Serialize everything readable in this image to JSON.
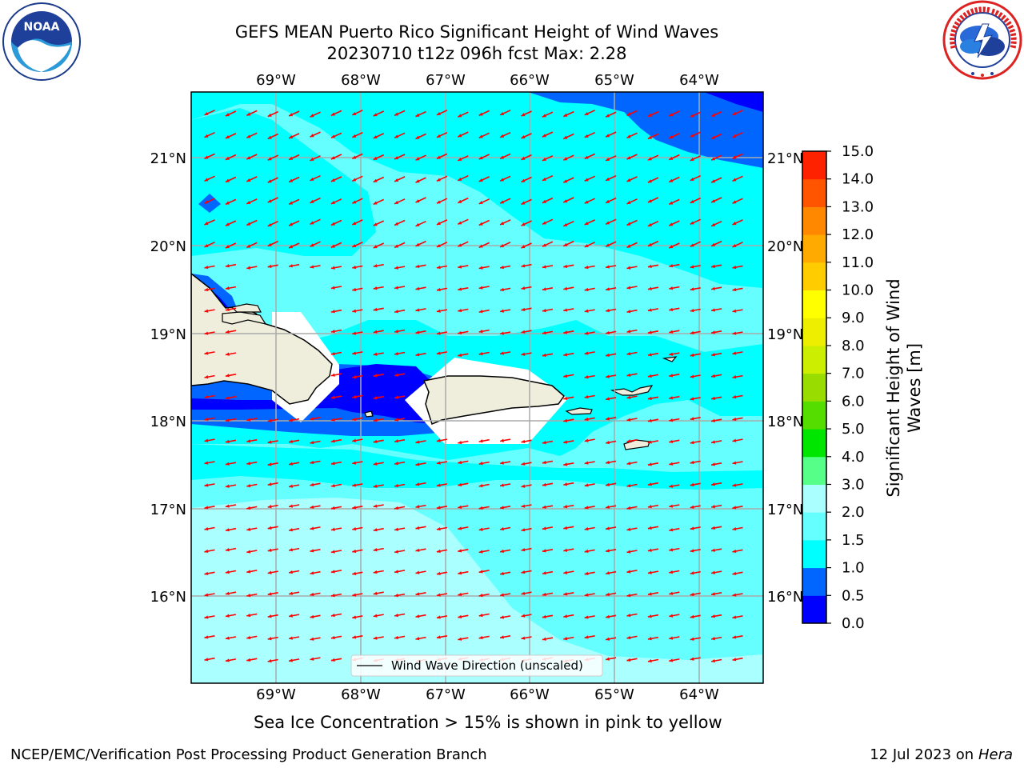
{
  "title": {
    "line1": "GEFS MEAN Puerto Rico Significant Height of Wind Waves",
    "line2": "20230710 t12z 096h fcst   Max: 2.28"
  },
  "logos": {
    "left": {
      "icon": "noaa-logo-icon",
      "text": "NOAA",
      "ring_text": "NATIONAL OCEANIC AND ATMOSPHERIC ADMINISTRATION · U.S. DEPARTMENT OF COMMERCE"
    },
    "right": {
      "icon": "nws-logo-icon",
      "ring_text": "NATIONAL WEATHER SERVICE"
    }
  },
  "map": {
    "lon_ticks": [
      "69°W",
      "68°W",
      "67°W",
      "66°W",
      "65°W",
      "64°W"
    ],
    "lat_ticks": [
      "21°N",
      "20°N",
      "19°N",
      "18°N",
      "17°N",
      "16°N"
    ],
    "legend_label": "Wind Wave Direction (unscaled)",
    "arrow_color": "#ff0000",
    "land_color": "#efeedd",
    "arrow_direction": "westward"
  },
  "colorbar": {
    "label": "Significant Height of Wind Waves [m]",
    "label_line1": "Significant Height of Wind",
    "label_line2": "Waves [m]",
    "ticks": [
      "0.0",
      "0.5",
      "1.0",
      "1.5",
      "2.0",
      "3.0",
      "4.0",
      "5.0",
      "6.0",
      "7.0",
      "8.0",
      "9.0",
      "10.0",
      "11.0",
      "12.0",
      "13.0",
      "14.0",
      "15.0"
    ],
    "colors": [
      "#0000ff",
      "#0066ff",
      "#00ffff",
      "#66ffff",
      "#aaffff",
      "#55ff88",
      "#00e600",
      "#55dd00",
      "#99dd00",
      "#ccee00",
      "#eeee00",
      "#ffff00",
      "#ffcc00",
      "#ffaa00",
      "#ff8800",
      "#ff5500",
      "#ff2200",
      "#ff0000"
    ]
  },
  "caption": "Sea Ice Concentration > 15% is shown in pink to yellow",
  "footer": {
    "left": "NCEP/EMC/Verification Post Processing Product Generation Branch",
    "right_prefix": "12 Jul 2023 on ",
    "right_host": "Hera"
  }
}
